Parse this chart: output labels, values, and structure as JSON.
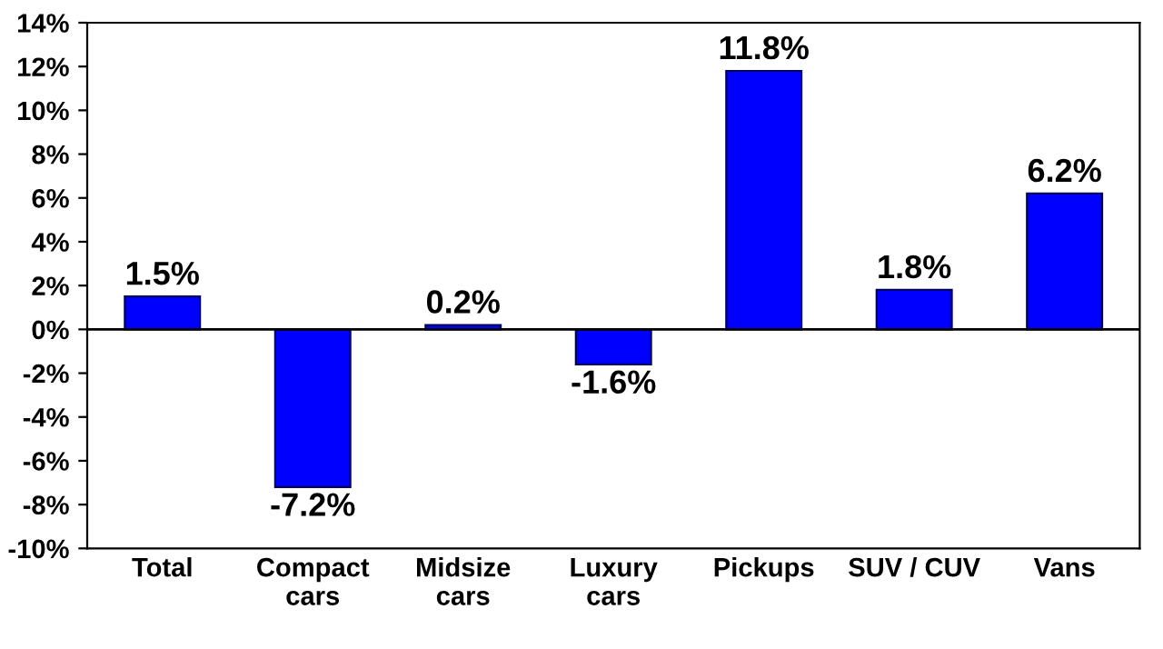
{
  "chart_data": {
    "type": "bar",
    "categories": [
      "Total",
      "Compact\ncars",
      "Midsize\ncars",
      "Luxury\ncars",
      "Pickups",
      "SUV / CUV",
      "Vans"
    ],
    "values": [
      1.5,
      -7.2,
      0.2,
      -1.6,
      11.8,
      1.8,
      6.2
    ],
    "value_labels": [
      "1.5%",
      "-7.2%",
      "0.2%",
      "-1.6%",
      "11.8%",
      "1.8%",
      "6.2%"
    ],
    "color": "#0000ff",
    "ylim": [
      -10,
      14
    ],
    "yticks": [
      {
        "value": -10,
        "label": "-10%"
      },
      {
        "value": -8,
        "label": "-8%"
      },
      {
        "value": -6,
        "label": "-6%"
      },
      {
        "value": -4,
        "label": "-4%"
      },
      {
        "value": -2,
        "label": "-2%"
      },
      {
        "value": 0,
        "label": "0%"
      },
      {
        "value": 2,
        "label": "2%"
      },
      {
        "value": 4,
        "label": "4%"
      },
      {
        "value": 6,
        "label": "6%"
      },
      {
        "value": 8,
        "label": "8%"
      },
      {
        "value": 10,
        "label": "10%"
      },
      {
        "value": 12,
        "label": "12%"
      },
      {
        "value": 14,
        "label": "14%"
      }
    ],
    "ref_lines": [
      {
        "axis": "y",
        "value": 0,
        "color": "#000000"
      }
    ],
    "grid": false,
    "legend": false
  }
}
